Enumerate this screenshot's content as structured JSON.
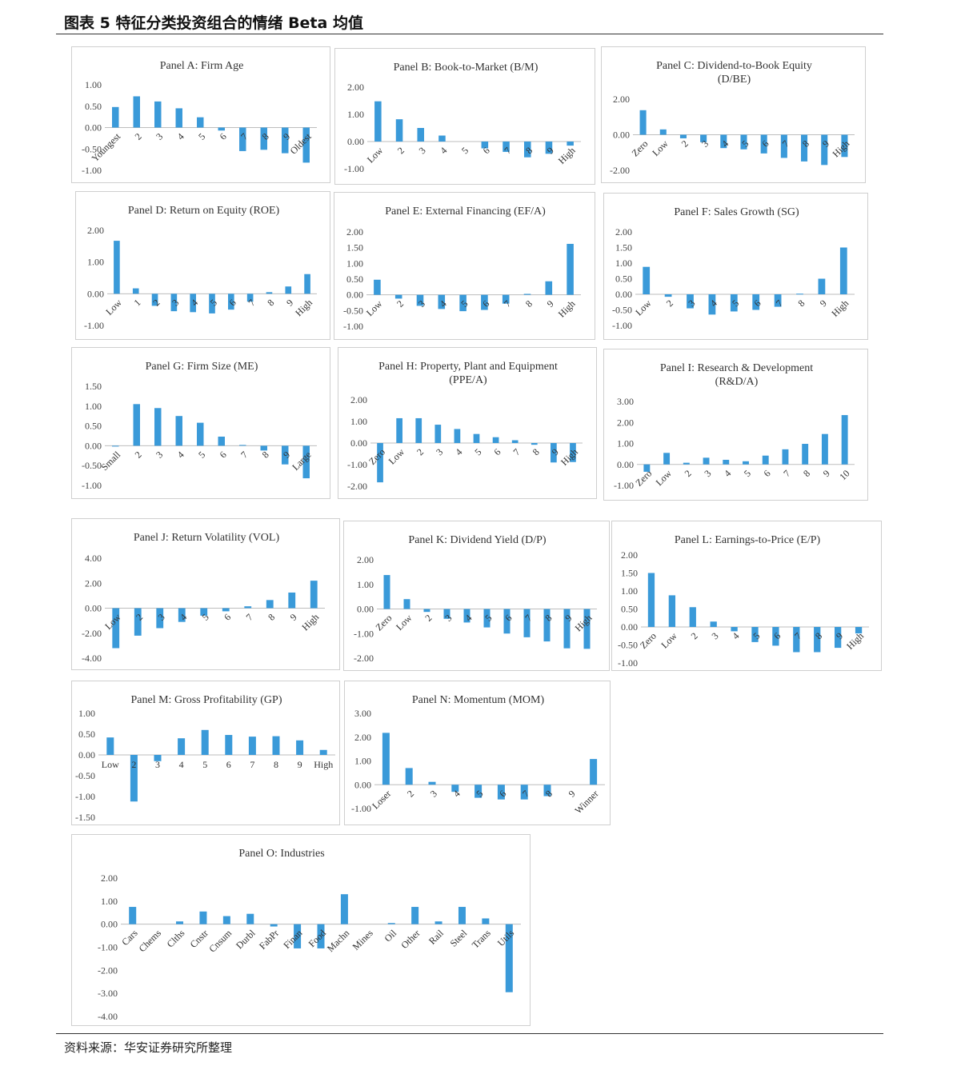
{
  "figure": {
    "title": "图表 5 特征分类投资组合的情绪 Beta 均值",
    "source": "资料来源：华安证券研究所整理",
    "bar_color": "#3a9ad9"
  },
  "chart_data": [
    {
      "type": "bar",
      "id": "A",
      "title": [
        "Panel A: Firm Age"
      ],
      "categories": [
        "Youngest",
        "2",
        "3",
        "4",
        "5",
        "6",
        "7",
        "8",
        "9",
        "Oldest"
      ],
      "values": [
        0.48,
        0.73,
        0.61,
        0.45,
        0.24,
        -0.07,
        -0.55,
        -0.52,
        -0.6,
        -0.82
      ],
      "yticks": [
        "1.00",
        "0.50",
        "0.00",
        "-0.50",
        "-1.00"
      ],
      "ylim": [
        -1.0,
        1.0
      ],
      "label_pos": "axis",
      "rotate": -45
    },
    {
      "type": "bar",
      "id": "B",
      "title": [
        "Panel B: Book-to-Market (B/M)"
      ],
      "categories": [
        "Low",
        "2",
        "3",
        "4",
        "5",
        "6",
        "7",
        "8",
        "9",
        "High"
      ],
      "values": [
        1.48,
        0.82,
        0.5,
        0.22,
        0.0,
        -0.25,
        -0.38,
        -0.58,
        -0.45,
        -0.15
      ],
      "yticks": [
        "2.00",
        "1.00",
        "0.00",
        "-1.00"
      ],
      "ylim": [
        -1.0,
        2.0
      ],
      "label_pos": "axis",
      "rotate": -45
    },
    {
      "type": "bar",
      "id": "C",
      "title": [
        "Panel C: Dividend-to-Book Equity",
        "(D/BE)"
      ],
      "categories": [
        "Zero",
        "Low",
        "2",
        "3",
        "4",
        "5",
        "6",
        "7",
        "8",
        "9",
        "High"
      ],
      "values": [
        1.38,
        0.3,
        -0.2,
        -0.42,
        -0.75,
        -0.82,
        -1.05,
        -1.3,
        -1.5,
        -1.7,
        -1.25
      ],
      "yticks": [
        "2.00",
        "0.00",
        "-2.00"
      ],
      "ylim": [
        -2.0,
        2.0
      ],
      "label_pos": "axis",
      "rotate": -45
    },
    {
      "type": "bar",
      "id": "D",
      "title": [
        "Panel D: Return on Equity (ROE)"
      ],
      "categories": [
        "Low",
        "1",
        "2",
        "3",
        "4",
        "5",
        "6",
        "7",
        "8",
        "9",
        "High"
      ],
      "values": [
        1.67,
        0.17,
        -0.38,
        -0.55,
        -0.58,
        -0.62,
        -0.5,
        -0.25,
        0.05,
        0.23,
        0.62
      ],
      "yticks": [
        "2.00",
        "1.00",
        "0.00",
        "-1.00"
      ],
      "ylim": [
        -1.0,
        2.0
      ],
      "label_pos": "axis",
      "rotate": -45
    },
    {
      "type": "bar",
      "id": "E",
      "title": [
        "Panel E: External Financing (EF/A)"
      ],
      "categories": [
        "Low",
        "2",
        "3",
        "4",
        "5",
        "6",
        "7",
        "8",
        "9",
        "High"
      ],
      "values": [
        0.48,
        -0.12,
        -0.35,
        -0.45,
        -0.52,
        -0.48,
        -0.28,
        0.03,
        0.43,
        1.62
      ],
      "yticks": [
        "2.00",
        "1.50",
        "1.00",
        "0.50",
        "0.00",
        "-0.50",
        "-1.00"
      ],
      "ylim": [
        -1.0,
        2.0
      ],
      "label_pos": "axis",
      "rotate": -45
    },
    {
      "type": "bar",
      "id": "F",
      "title": [
        "Panel F: Sales Growth (SG)"
      ],
      "categories": [
        "Low",
        "2",
        "3",
        "4",
        "5",
        "6",
        "7",
        "8",
        "9",
        "High"
      ],
      "values": [
        0.88,
        -0.08,
        -0.45,
        -0.65,
        -0.55,
        -0.5,
        -0.4,
        0.02,
        0.5,
        1.5
      ],
      "yticks": [
        "2.00",
        "1.50",
        "1.00",
        "0.50",
        "0.00",
        "-0.50",
        "-1.00"
      ],
      "ylim": [
        -1.0,
        2.0
      ],
      "label_pos": "axis",
      "rotate": -45
    },
    {
      "type": "bar",
      "id": "G",
      "title": [
        "Panel G: Firm Size (ME)"
      ],
      "categories": [
        "Small",
        "2",
        "3",
        "4",
        "5",
        "6",
        "7",
        "8",
        "9",
        "Large"
      ],
      "values": [
        -0.02,
        1.05,
        0.95,
        0.75,
        0.58,
        0.23,
        0.02,
        -0.12,
        -0.47,
        -0.82
      ],
      "yticks": [
        "1.50",
        "1.00",
        "0.50",
        "0.00",
        "-0.50",
        "-1.00"
      ],
      "ylim": [
        -1.0,
        1.5
      ],
      "label_pos": "axis",
      "rotate": -45
    },
    {
      "type": "bar",
      "id": "H",
      "title": [
        "Panel H: Property, Plant and Equipment",
        "(PPE/A)"
      ],
      "categories": [
        "Zero",
        "Low",
        "2",
        "3",
        "4",
        "5",
        "6",
        "7",
        "8",
        "9",
        "High"
      ],
      "values": [
        -1.82,
        1.15,
        1.15,
        0.85,
        0.65,
        0.42,
        0.27,
        0.13,
        -0.08,
        -0.9,
        -0.88
      ],
      "yticks": [
        "2.00",
        "1.00",
        "0.00",
        "-1.00",
        "-2.00"
      ],
      "ylim": [
        -2.0,
        2.0
      ],
      "label_pos": "axis",
      "rotate": -45
    },
    {
      "type": "bar",
      "id": "I",
      "title": [
        "Panel I: Research & Development",
        "(R&D/A)"
      ],
      "categories": [
        "Zero",
        "Low",
        "2",
        "3",
        "4",
        "5",
        "6",
        "7",
        "8",
        "9",
        "10"
      ],
      "values": [
        -0.35,
        0.55,
        0.08,
        0.32,
        0.22,
        0.15,
        0.42,
        0.72,
        0.98,
        1.45,
        2.35
      ],
      "yticks": [
        "3.00",
        "2.00",
        "1.00",
        "0.00",
        "-1.00"
      ],
      "ylim": [
        -1.0,
        3.0
      ],
      "label_pos": "axis",
      "rotate": -45
    },
    {
      "type": "bar",
      "id": "J",
      "title": [
        "Panel J: Return Volatility (VOL)"
      ],
      "categories": [
        "Low",
        "2",
        "3",
        "4",
        "5",
        "6",
        "7",
        "8",
        "9",
        "High"
      ],
      "values": [
        -3.2,
        -2.2,
        -1.6,
        -1.1,
        -0.6,
        -0.25,
        0.15,
        0.65,
        1.25,
        2.2
      ],
      "yticks": [
        "4.00",
        "2.00",
        "0.00",
        "-2.00",
        "-4.00"
      ],
      "ylim": [
        -4.0,
        4.0
      ],
      "label_pos": "axis",
      "rotate": -45
    },
    {
      "type": "bar",
      "id": "K",
      "title": [
        "Panel K: Dividend Yield (D/P)"
      ],
      "categories": [
        "Zero",
        "Low",
        "2",
        "3",
        "4",
        "5",
        "6",
        "7",
        "8",
        "9",
        "High"
      ],
      "values": [
        1.38,
        0.4,
        -0.12,
        -0.4,
        -0.55,
        -0.75,
        -1.0,
        -1.15,
        -1.32,
        -1.6,
        -1.62
      ],
      "yticks": [
        "2.00",
        "1.00",
        "0.00",
        "-1.00",
        "-2.00"
      ],
      "ylim": [
        -2.0,
        2.0
      ],
      "label_pos": "axis",
      "rotate": -45
    },
    {
      "type": "bar",
      "id": "L",
      "title": [
        "Panel L: Earnings-to-Price (E/P)"
      ],
      "categories": [
        "Zero",
        "Low",
        "2",
        "3",
        "4",
        "5",
        "6",
        "7",
        "8",
        "9",
        "High"
      ],
      "values": [
        1.5,
        0.88,
        0.55,
        0.15,
        -0.12,
        -0.42,
        -0.52,
        -0.7,
        -0.7,
        -0.58,
        -0.18
      ],
      "yticks": [
        "2.00",
        "1.50",
        "1.00",
        "0.50",
        "0.00",
        "-0.50",
        "-1.00"
      ],
      "ylim": [
        -1.0,
        2.0
      ],
      "label_pos": "axis",
      "rotate": -45
    },
    {
      "type": "bar",
      "id": "M",
      "title": [
        "Panel M: Gross Profitability (GP)"
      ],
      "categories": [
        "Low",
        "2",
        "3",
        "4",
        "5",
        "6",
        "7",
        "8",
        "9",
        "High"
      ],
      "values": [
        0.42,
        -1.12,
        -0.15,
        0.4,
        0.6,
        0.48,
        0.44,
        0.45,
        0.35,
        0.12
      ],
      "yticks": [
        "1.00",
        "0.50",
        "0.00",
        "-0.50",
        "-1.00",
        "-1.50"
      ],
      "ylim": [
        -1.5,
        1.0
      ],
      "label_pos": "axis",
      "rotate": 0
    },
    {
      "type": "bar",
      "id": "N",
      "title": [
        "Panel N: Momentum (MOM)"
      ],
      "categories": [
        "Loser",
        "2",
        "3",
        "4",
        "5",
        "6",
        "7",
        "8",
        "9",
        "Winner"
      ],
      "values": [
        2.18,
        0.7,
        0.12,
        -0.3,
        -0.55,
        -0.62,
        -0.62,
        -0.48,
        0.0,
        1.08
      ],
      "yticks": [
        "3.00",
        "2.00",
        "1.00",
        "0.00",
        "-1.00"
      ],
      "ylim": [
        -1.0,
        3.0
      ],
      "label_pos": "axis",
      "rotate": -45
    },
    {
      "type": "bar",
      "id": "O",
      "title": [
        "Panel O: Industries"
      ],
      "categories": [
        "Cars",
        "Chems",
        "Clths",
        "Cnstr",
        "Cnsum",
        "Durbl",
        "FabPr",
        "Finan",
        "Food",
        "Machn",
        "Mines",
        "Oil",
        "Other",
        "Rail",
        "Steel",
        "Trans",
        "Utils"
      ],
      "values": [
        0.75,
        0.0,
        0.12,
        0.55,
        0.35,
        0.45,
        -0.1,
        -1.05,
        -1.05,
        1.3,
        0.0,
        0.05,
        0.75,
        0.12,
        0.75,
        0.25,
        -2.95
      ],
      "yticks": [
        "2.00",
        "1.00",
        "0.00",
        "-1.00",
        "-2.00",
        "-3.00",
        "-4.00"
      ],
      "ylim": [
        -4.0,
        2.0
      ],
      "label_pos": "axis",
      "rotate": -45
    }
  ]
}
